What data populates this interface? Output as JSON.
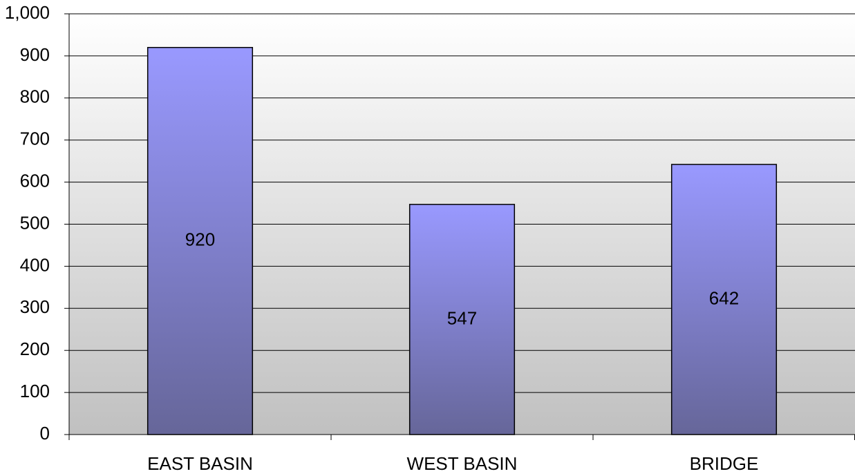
{
  "chart_data": {
    "type": "bar",
    "categories": [
      "EAST BASIN",
      "WEST BASIN",
      "BRIDGE"
    ],
    "values": [
      920,
      547,
      642
    ],
    "color": "#9999ff",
    "ylim": [
      0,
      1000
    ],
    "yticks": [
      0,
      100,
      200,
      300,
      400,
      500,
      600,
      700,
      800,
      900,
      {
        "value": 1000,
        "label": "1,000"
      }
    ],
    "grid": true
  }
}
